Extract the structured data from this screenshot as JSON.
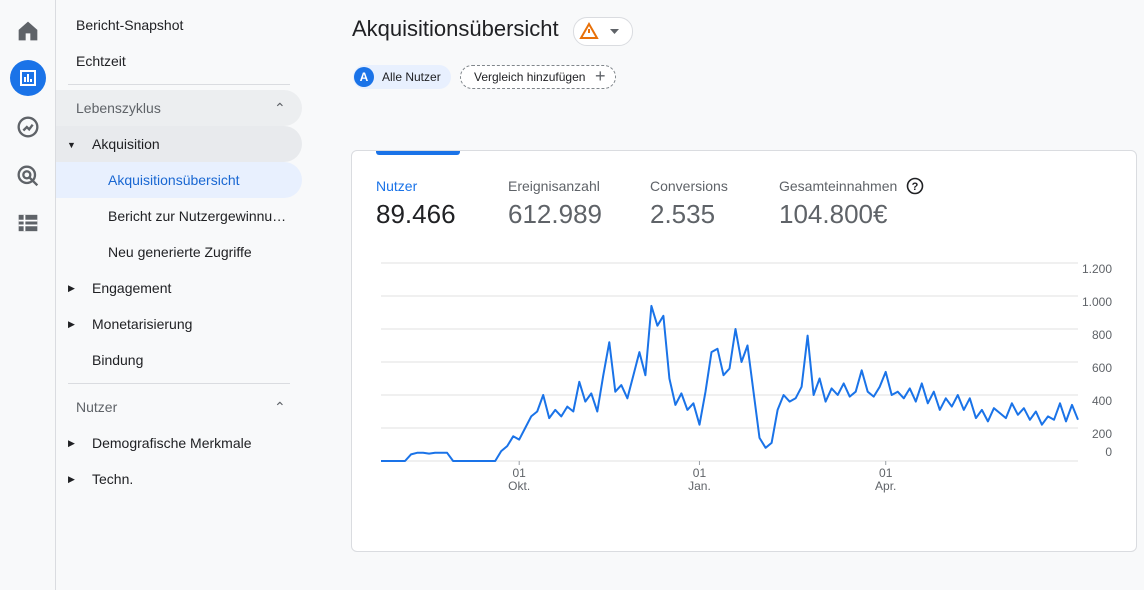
{
  "nav": {
    "top": [
      "Bericht-Snapshot",
      "Echtzeit"
    ],
    "sections": [
      {
        "title": "Lebenszyklus",
        "items": [
          {
            "label": "Akquisition",
            "children": [
              "Akquisitionsübersicht",
              "Bericht zur Nutzergewinnu…",
              "Neu generierte Zugriffe"
            ]
          },
          {
            "label": "Engagement"
          },
          {
            "label": "Monetarisierung"
          },
          {
            "label": "Bindung"
          }
        ]
      },
      {
        "title": "Nutzer",
        "items": [
          {
            "label": "Demografische Merkmale"
          },
          {
            "label": "Techn."
          }
        ]
      }
    ]
  },
  "header": {
    "title": "Akquisitionsübersicht",
    "segment_badge": "A",
    "segment": "Alle Nutzer",
    "compare": "Vergleich hinzufügen"
  },
  "metrics": [
    {
      "label": "Nutzer",
      "value": "89.466"
    },
    {
      "label": "Ereignisanzahl",
      "value": "612.989"
    },
    {
      "label": "Conversions",
      "value": "2.535"
    },
    {
      "label": "Gesamteinnahmen",
      "value": "104.800€"
    }
  ],
  "chart_data": {
    "type": "line",
    "color": "#1a73e8",
    "grid": true,
    "ylim": [
      0,
      1200
    ],
    "yticks": [
      0,
      200,
      400,
      600,
      800,
      {
        "value": 1000,
        "label": "1.000"
      },
      {
        "value": 1200,
        "label": "1.200"
      }
    ],
    "categories": [
      null,
      null,
      null,
      null,
      null,
      null,
      null,
      null,
      null,
      null,
      null,
      null,
      null,
      null,
      null,
      null,
      null,
      null,
      null,
      null,
      null,
      null,
      null,
      "01 Okt.",
      null,
      null,
      null,
      null,
      null,
      null,
      null,
      null,
      null,
      null,
      null,
      null,
      null,
      null,
      null,
      null,
      null,
      null,
      null,
      null,
      null,
      null,
      null,
      null,
      null,
      null,
      null,
      null,
      null,
      "01 Jan.",
      null,
      null,
      null,
      null,
      null,
      null,
      null,
      null,
      null,
      null,
      null,
      null,
      null,
      null,
      null,
      null,
      null,
      null,
      null,
      null,
      null,
      null,
      null,
      null,
      null,
      null,
      null,
      null,
      null,
      null,
      "01 Apr.",
      null,
      null,
      null,
      null,
      null,
      null,
      null,
      null,
      null,
      null,
      null,
      null,
      null,
      null,
      null,
      null,
      null,
      null,
      null,
      null,
      null,
      null,
      null,
      null,
      null,
      null,
      null,
      null,
      null,
      null,
      null,
      null
    ],
    "series": [
      {
        "name": "Nutzer",
        "values": [
          0,
          0,
          0,
          0,
          0,
          40,
          50,
          50,
          45,
          50,
          50,
          50,
          0,
          0,
          0,
          0,
          0,
          0,
          0,
          0,
          60,
          90,
          150,
          130,
          200,
          270,
          300,
          400,
          260,
          310,
          270,
          330,
          300,
          480,
          360,
          410,
          300,
          520,
          720,
          420,
          460,
          380,
          520,
          660,
          520,
          940,
          820,
          880,
          500,
          340,
          410,
          310,
          350,
          220,
          420,
          660,
          680,
          520,
          560,
          800,
          600,
          700,
          420,
          140,
          80,
          110,
          310,
          400,
          360,
          380,
          450,
          760,
          400,
          500,
          360,
          440,
          400,
          470,
          390,
          420,
          550,
          420,
          390,
          450,
          540,
          400,
          420,
          380,
          440,
          360,
          470,
          350,
          420,
          310,
          380,
          330,
          400,
          310,
          380,
          260,
          310,
          240,
          320,
          290,
          260,
          350,
          280,
          320,
          250,
          300,
          220,
          270,
          250,
          350,
          240,
          340,
          250
        ]
      }
    ]
  }
}
